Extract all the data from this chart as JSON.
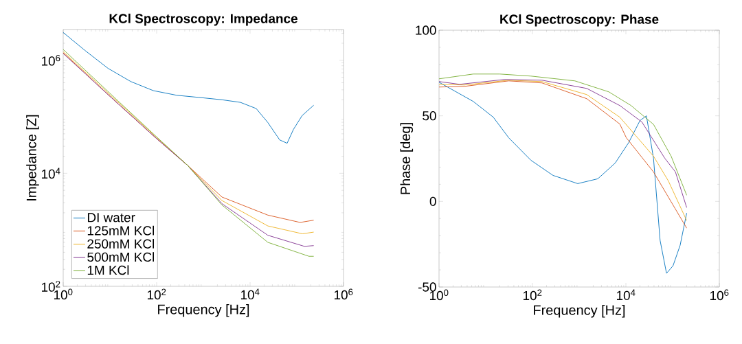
{
  "chart_data": [
    {
      "type": "line",
      "title": "KCl Spectroscopy: Impedance",
      "xlabel": "Frequency [Hz]",
      "ylabel": "Impedance [Z]",
      "log": "xy",
      "xlim": [
        1,
        1000000
      ],
      "ylim": [
        100,
        3500000
      ],
      "xticks": [
        {
          "value": 1,
          "label": "10$^{0}$"
        },
        {
          "value": 100,
          "label": "10$^{2}$"
        },
        {
          "value": 10000,
          "label": "10$^{4}$"
        },
        {
          "value": 1000000,
          "label": "10$^{6}$"
        }
      ],
      "yticks": [
        {
          "value": 100,
          "label": "10$^{2}$"
        },
        {
          "value": 10000,
          "label": "10$^{4}$"
        },
        {
          "value": 1000000,
          "label": "10$^{6}$"
        }
      ],
      "legend": "bottom left",
      "series": [
        {
          "name": "DI water",
          "color": "#0072bd",
          "x": [
            1,
            2.9,
            9.1,
            28,
            85,
            270,
            810,
            2500,
            6200,
            13500,
            24000,
            43000,
            62000,
            85000,
            130000,
            230000
          ],
          "values": [
            3100000,
            1500000,
            720000,
            420000,
            290000,
            240000,
            220000,
            200000,
            180000,
            140000,
            79000,
            39000,
            34000,
            60000,
            105000,
            160000
          ]
        },
        {
          "name": "125mM KCl",
          "color": "#d95319",
          "x": [
            1,
            10,
            100,
            460,
            2500,
            24000,
            118000,
            230000
          ],
          "values": [
            1350000,
            230000,
            41000,
            13800,
            3800,
            1820,
            1350,
            1480
          ]
        },
        {
          "name": "250mM KCl",
          "color": "#edb120",
          "x": [
            1,
            10,
            100,
            460,
            2500,
            24000,
            132000,
            230000
          ],
          "values": [
            1410000,
            245000,
            43000,
            13800,
            3300,
            1170,
            850,
            910
          ]
        },
        {
          "name": "500mM KCl",
          "color": "#7e2f8e",
          "x": [
            1,
            10,
            100,
            460,
            2500,
            24000,
            145000,
            230000
          ],
          "values": [
            1320000,
            230000,
            41000,
            13800,
            2900,
            800,
            510,
            525
          ]
        },
        {
          "name": "1M KCl",
          "color": "#77ac30",
          "x": [
            1,
            10,
            100,
            460,
            2500,
            24000,
            182000,
            230000
          ],
          "values": [
            1550000,
            260000,
            44000,
            13800,
            2750,
            600,
            340,
            340
          ]
        }
      ]
    },
    {
      "type": "line",
      "title": "KCl Spectroscopy: Phase",
      "xlabel": "Frequency [Hz]",
      "ylabel": "Phase [deg]",
      "log": "x",
      "xlim": [
        1,
        1000000
      ],
      "ylim": [
        -50,
        100
      ],
      "xticks": [
        {
          "value": 1,
          "label": "10$^{0}$"
        },
        {
          "value": 100,
          "label": "10$^{2}$"
        },
        {
          "value": 10000,
          "label": "10$^{4}$"
        },
        {
          "value": 1000000,
          "label": "10$^{6}$"
        }
      ],
      "yticks": [
        -50,
        0,
        50,
        100
      ],
      "series": [
        {
          "color": "#0072bd",
          "x": [
            1,
            5.4,
            14.5,
            31,
            93,
            275,
            930,
            2500,
            5900,
            11500,
            20000,
            27500,
            39000,
            54000,
            74000,
            102000,
            145000,
            200000
          ],
          "values": [
            69.6,
            58.4,
            49.2,
            37.2,
            24,
            15.2,
            10.4,
            13.2,
            22.4,
            34.4,
            47.2,
            50,
            25.2,
            -22.8,
            -42,
            -37.6,
            -25.6,
            -6.8
          ]
        },
        {
          "color": "#d95319",
          "x": [
            1,
            3.5,
            31,
            160,
            1450,
            7400,
            10200,
            39000,
            200000
          ],
          "values": [
            66.8,
            67.2,
            70.4,
            69.2,
            60,
            45.2,
            37.2,
            17.2,
            -15.6
          ]
        },
        {
          "color": "#edb120",
          "x": [
            1,
            3.5,
            31,
            160,
            1450,
            7400,
            39000,
            81000,
            200000
          ],
          "values": [
            68.4,
            68,
            70.8,
            70,
            62.4,
            49.2,
            26.4,
            12,
            -11.2
          ]
        },
        {
          "color": "#7e2f8e",
          "x": [
            1,
            2.75,
            25,
            160,
            1450,
            7400,
            22000,
            68000,
            115000,
            200000
          ],
          "values": [
            70,
            68.4,
            71.2,
            70.8,
            66,
            56,
            46.4,
            25.2,
            17.2,
            -3.6
          ]
        },
        {
          "color": "#77ac30",
          "x": [
            1,
            5.4,
            20,
            93,
            810,
            4300,
            12900,
            39000,
            93000,
            200000
          ],
          "values": [
            71.6,
            74.4,
            74.4,
            73.2,
            70.4,
            64,
            56,
            45,
            26.4,
            3.6
          ]
        }
      ]
    }
  ]
}
